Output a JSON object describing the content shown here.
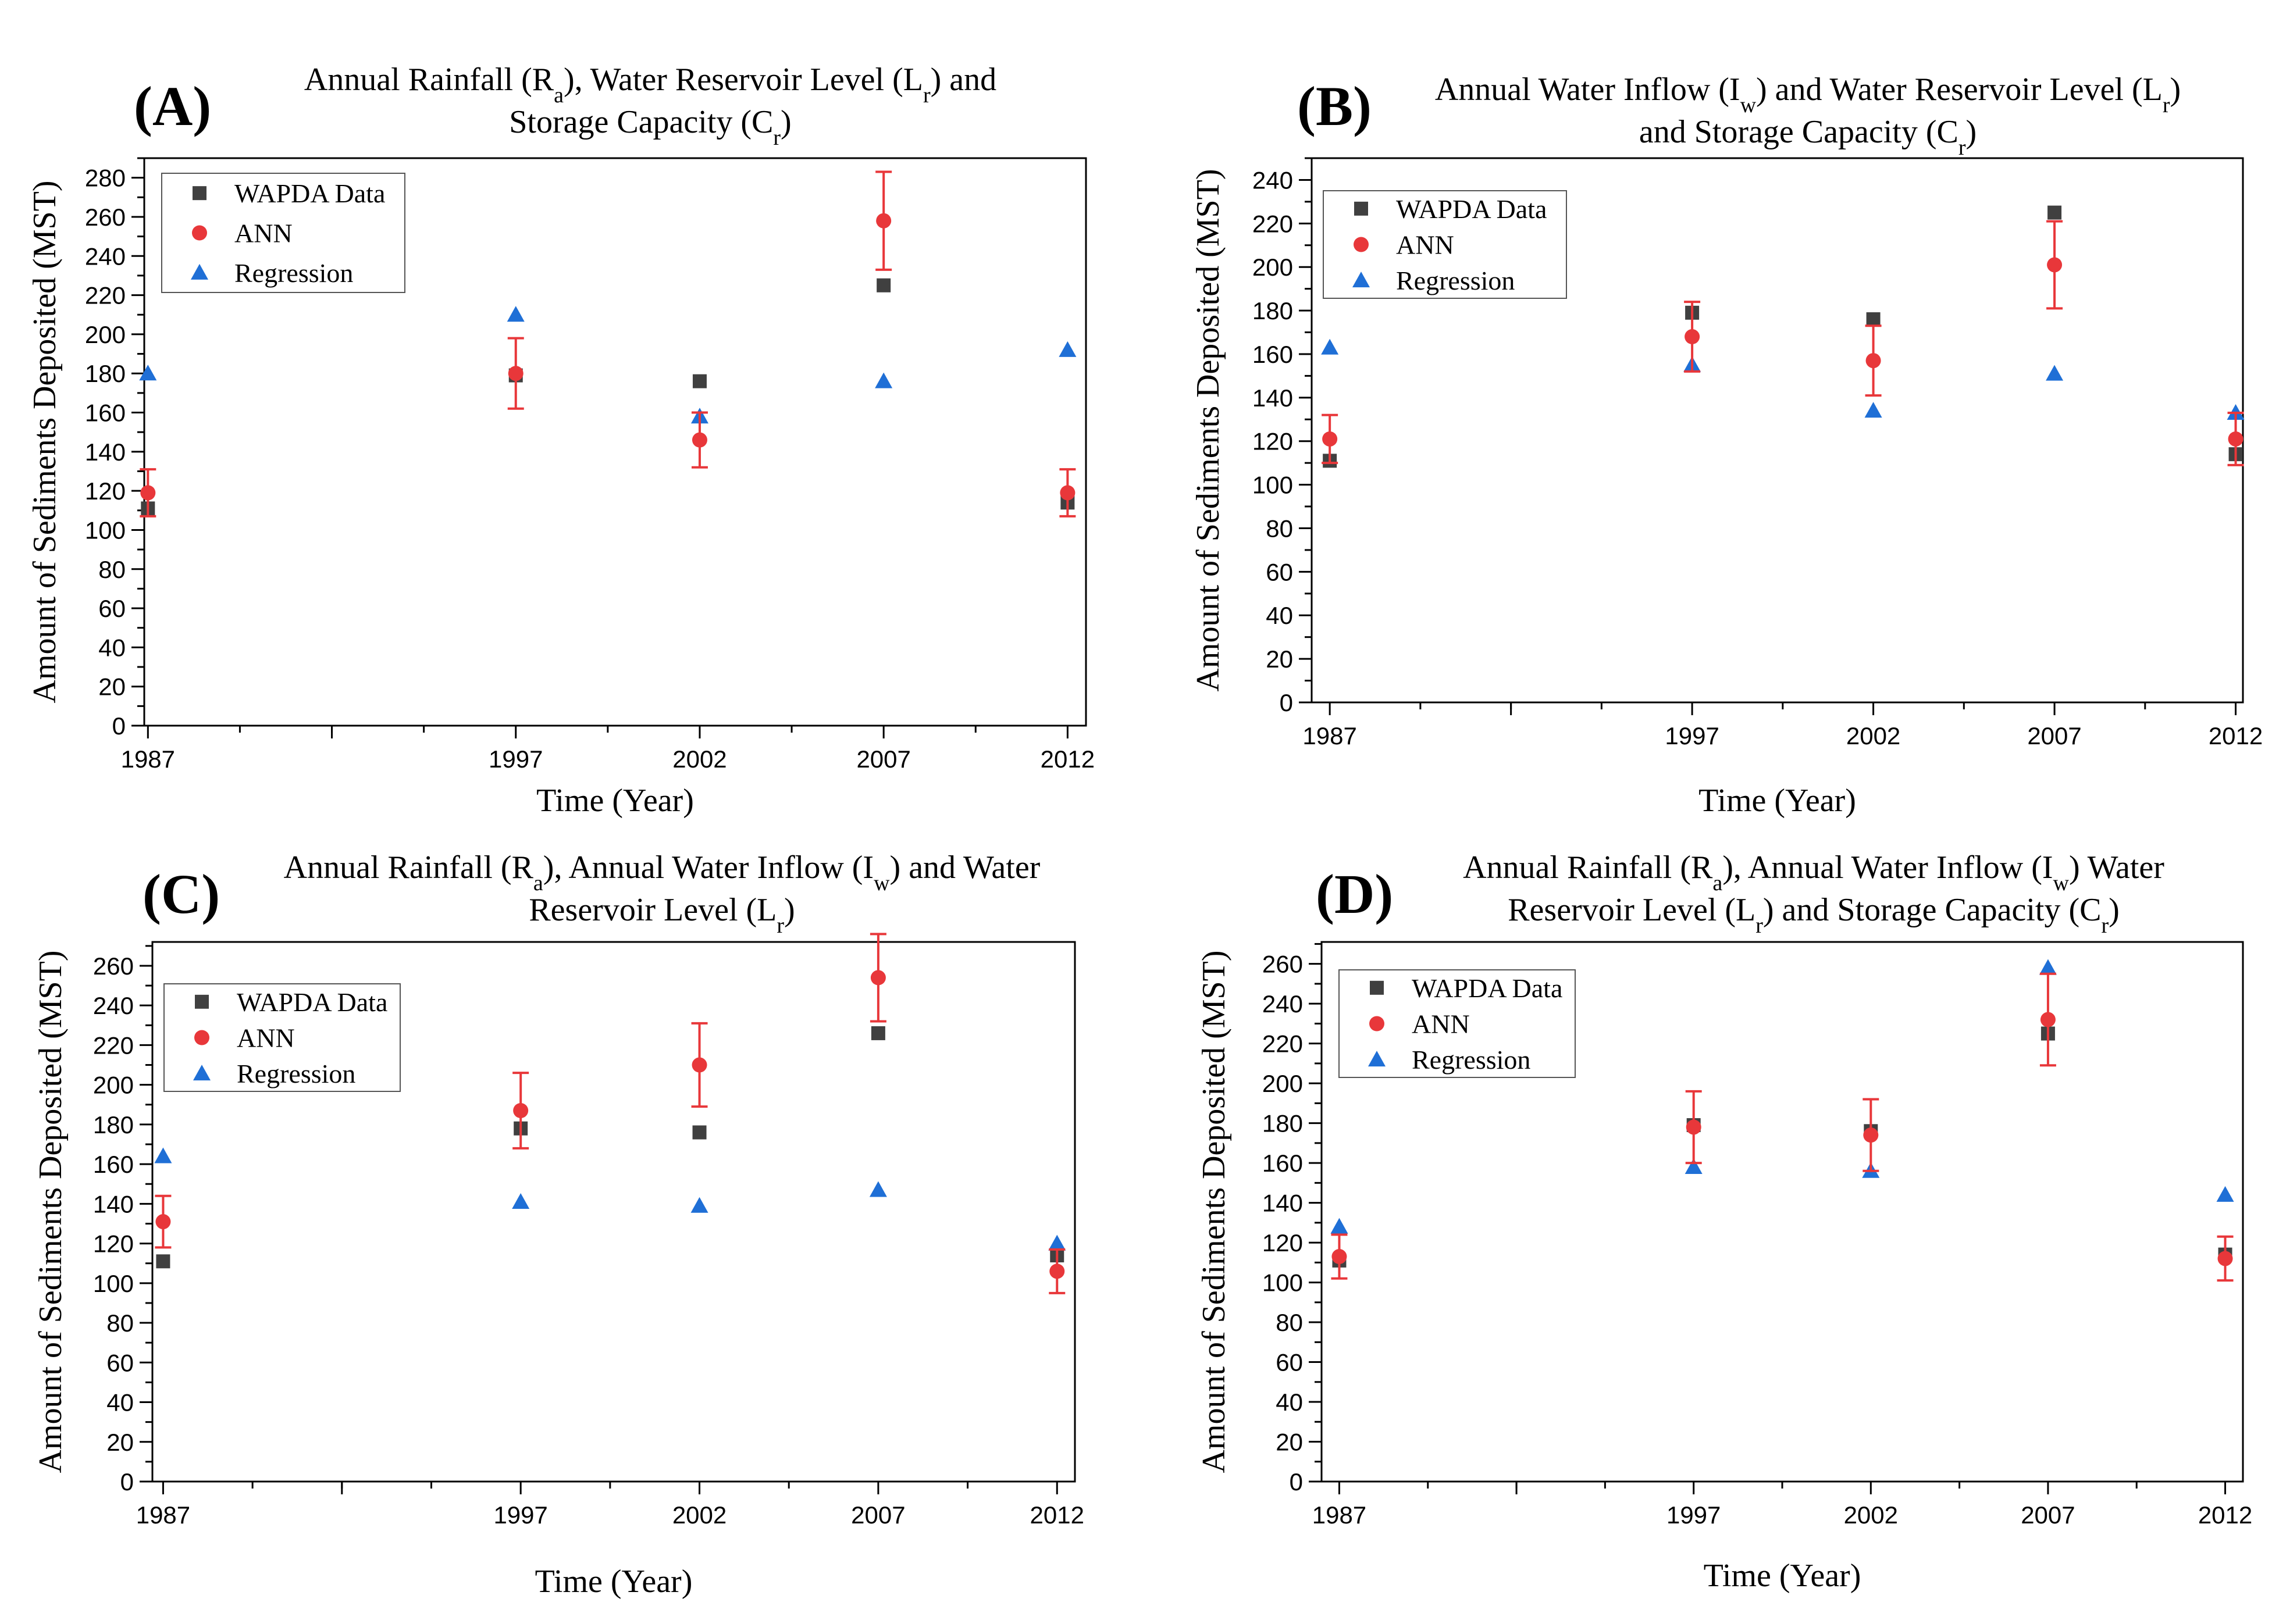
{
  "panels": [
    {
      "letter": "(A)",
      "title": [
        "Annual Rainfall (R",
        "a",
        "), Water Reservoir Level (L",
        "r",
        ") and"
      ],
      "title2": [
        "Storage Capacity (C",
        "r",
        ")"
      ],
      "ylabel": "Amount of Sediments Deposited (MST)",
      "xlabel": "Time (Year)",
      "legend": [
        "WAPDA Data",
        "ANN",
        "Regression"
      ],
      "chart_data": {
        "type": "scatter",
        "x": [
          1987,
          1997,
          2002,
          2007,
          2012
        ],
        "xlim": [
          1986.9,
          2012.5
        ],
        "xticks": [
          1987,
          1997,
          2002,
          2007,
          2012
        ],
        "ylim": [
          0,
          290
        ],
        "yticks": [
          0,
          20,
          40,
          60,
          80,
          100,
          120,
          140,
          160,
          180,
          200,
          220,
          240,
          260,
          280
        ],
        "series": [
          {
            "name": "WAPDA Data",
            "marker": "square",
            "color": "#404040",
            "values": [
              111,
              179,
              176,
              225,
              114
            ]
          },
          {
            "name": "ANN",
            "marker": "circle",
            "color": "#e8373a",
            "values": [
              119,
              180,
              146,
              258,
              119
            ],
            "err": [
              12,
              18,
              14,
              25,
              12
            ]
          },
          {
            "name": "Regression",
            "marker": "triangle",
            "color": "#1f6fd6",
            "values": [
              180,
              210,
              158,
              176,
              192
            ]
          }
        ]
      }
    },
    {
      "letter": "(B)",
      "title": [
        "Annual Water Inflow (I",
        "w",
        ") and Water Reservoir Level (L",
        "r",
        ")"
      ],
      "title2": [
        "and Storage Capacity (C",
        "r",
        ")"
      ],
      "ylabel": "Amount of Sediments Deposited (MST)",
      "xlabel": "Time (Year)",
      "legend": [
        "WAPDA Data",
        "ANN",
        "Regression"
      ],
      "chart_data": {
        "type": "scatter",
        "x": [
          1987,
          1997,
          2002,
          2007,
          2012
        ],
        "xlim": [
          1986.5,
          2012.2
        ],
        "xticks": [
          1987,
          1997,
          2002,
          2007,
          2012
        ],
        "ylim": [
          0,
          250
        ],
        "yticks": [
          0,
          20,
          40,
          60,
          80,
          100,
          120,
          140,
          160,
          180,
          200,
          220,
          240
        ],
        "series": [
          {
            "name": "WAPDA Data",
            "marker": "square",
            "color": "#404040",
            "values": [
              111,
              179,
              176,
              225,
              114
            ]
          },
          {
            "name": "ANN",
            "marker": "circle",
            "color": "#e8373a",
            "values": [
              121,
              168,
              157,
              201,
              121
            ],
            "err": [
              11,
              16,
              16,
              20,
              12
            ]
          },
          {
            "name": "Regression",
            "marker": "triangle",
            "color": "#1f6fd6",
            "values": [
              163,
              155,
              134,
              151,
              133
            ]
          }
        ]
      }
    },
    {
      "letter": "(C)",
      "title": [
        "Annual Rainfall (R",
        "a",
        "), Annual Water Inflow (I",
        "w",
        ") and Water"
      ],
      "title2": [
        "Reservoir Level (L",
        "r",
        ")"
      ],
      "ylabel": "Amount of Sediments Deposited (MST)",
      "xlabel": "Time (Year)",
      "legend": [
        "WAPDA Data",
        "ANN",
        "Regression"
      ],
      "chart_data": {
        "type": "scatter",
        "x": [
          1987,
          1997,
          2002,
          2007,
          2012
        ],
        "xlim": [
          1986.7,
          2012.5
        ],
        "xticks": [
          1987,
          1997,
          2002,
          2007,
          2012
        ],
        "ylim": [
          0,
          272
        ],
        "yticks": [
          0,
          20,
          40,
          60,
          80,
          100,
          120,
          140,
          160,
          180,
          200,
          220,
          240,
          260
        ],
        "series": [
          {
            "name": "WAPDA Data",
            "marker": "square",
            "color": "#404040",
            "values": [
              111,
              178,
              176,
              226,
              114
            ]
          },
          {
            "name": "ANN",
            "marker": "circle",
            "color": "#e8373a",
            "values": [
              131,
              187,
              210,
              254,
              106
            ],
            "err": [
              13,
              19,
              21,
              22,
              11
            ]
          },
          {
            "name": "Regression",
            "marker": "triangle",
            "color": "#1f6fd6",
            "values": [
              164,
              141,
              139,
              147,
              120
            ]
          }
        ]
      }
    },
    {
      "letter": "(D)",
      "title": [
        "Annual Rainfall (R",
        "a",
        "), Annual Water Inflow (I",
        "w",
        ") Water"
      ],
      "title2": [
        "Reservoir Level (L",
        "r",
        ") and Storage Capacity (C",
        "r",
        ")"
      ],
      "ylabel": "Amount of Sediments Deposited (MST)",
      "xlabel": "Time (Year)",
      "legend": [
        "WAPDA Data",
        "ANN",
        "Regression"
      ],
      "chart_data": {
        "type": "scatter",
        "x": [
          1987,
          1997,
          2002,
          2007,
          2012
        ],
        "xlim": [
          1986.5,
          2012.5
        ],
        "xticks": [
          1987,
          1997,
          2002,
          2007,
          2012
        ],
        "ylim": [
          0,
          271
        ],
        "yticks": [
          0,
          20,
          40,
          60,
          80,
          100,
          120,
          140,
          160,
          180,
          200,
          220,
          240,
          260
        ],
        "series": [
          {
            "name": "WAPDA Data",
            "marker": "square",
            "color": "#404040",
            "values": [
              111,
              179,
              176,
              225,
              114
            ]
          },
          {
            "name": "ANN",
            "marker": "circle",
            "color": "#e8373a",
            "values": [
              113,
              178,
              174,
              232,
              112
            ],
            "err": [
              11,
              18,
              18,
              23,
              11
            ]
          },
          {
            "name": "Regression",
            "marker": "triangle",
            "color": "#1f6fd6",
            "values": [
              128,
              158,
              156,
              258,
              144
            ]
          }
        ]
      }
    }
  ]
}
